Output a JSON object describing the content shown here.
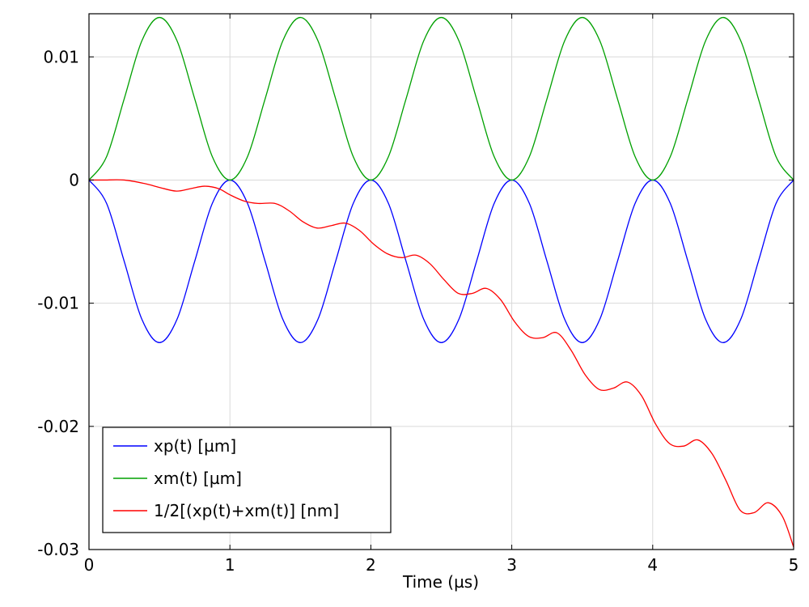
{
  "chart_data": {
    "type": "line",
    "xlabel": "Time (µs)",
    "ylabel": "",
    "xlim": [
      0,
      5
    ],
    "ylim": [
      -0.03,
      0.0135
    ],
    "grid": true,
    "legend_position": "bottom-left",
    "xticks": [
      {
        "value": 0,
        "label": "0"
      },
      {
        "value": 1,
        "label": "1"
      },
      {
        "value": 2,
        "label": "2"
      },
      {
        "value": 3,
        "label": "3"
      },
      {
        "value": 4,
        "label": "4"
      },
      {
        "value": 5,
        "label": "5"
      }
    ],
    "yticks": [
      {
        "value": 0.01,
        "label": "0.01"
      },
      {
        "value": 0,
        "label": "0"
      },
      {
        "value": -0.01,
        "label": "-0.01"
      },
      {
        "value": -0.02,
        "label": "-0.02"
      },
      {
        "value": -0.03,
        "label": "-0.03"
      }
    ],
    "series": [
      {
        "name": "xp(t) [µm]",
        "color": "#0000ff",
        "x": [
          0,
          0.125,
          0.25,
          0.375,
          0.5,
          0.625,
          0.75,
          0.875,
          1,
          1.125,
          1.25,
          1.375,
          1.5,
          1.625,
          1.75,
          1.875,
          2,
          2.125,
          2.25,
          2.375,
          2.5,
          2.625,
          2.75,
          2.875,
          3,
          3.125,
          3.25,
          3.375,
          3.5,
          3.625,
          3.75,
          3.875,
          4,
          4.125,
          4.25,
          4.375,
          4.5,
          4.625,
          4.75,
          4.875,
          5
        ],
        "y": [
          0,
          -0.0019,
          -0.0066,
          -0.0113,
          -0.0132,
          -0.0113,
          -0.0066,
          -0.0019,
          0,
          -0.0019,
          -0.0066,
          -0.0113,
          -0.0132,
          -0.0113,
          -0.0066,
          -0.0019,
          0,
          -0.0019,
          -0.0066,
          -0.0113,
          -0.0132,
          -0.0113,
          -0.0066,
          -0.0019,
          0,
          -0.0019,
          -0.0066,
          -0.0113,
          -0.0132,
          -0.0113,
          -0.0066,
          -0.0019,
          0,
          -0.0019,
          -0.0066,
          -0.0113,
          -0.0132,
          -0.0113,
          -0.0066,
          -0.0019,
          0
        ]
      },
      {
        "name": "xm(t) [µm]",
        "color": "#00a000",
        "x": [
          0,
          0.125,
          0.25,
          0.375,
          0.5,
          0.625,
          0.75,
          0.875,
          1,
          1.125,
          1.25,
          1.375,
          1.5,
          1.625,
          1.75,
          1.875,
          2,
          2.125,
          2.25,
          2.375,
          2.5,
          2.625,
          2.75,
          2.875,
          3,
          3.125,
          3.25,
          3.375,
          3.5,
          3.625,
          3.75,
          3.875,
          4,
          4.125,
          4.25,
          4.375,
          4.5,
          4.625,
          4.75,
          4.875,
          5
        ],
        "y": [
          0,
          0.0019,
          0.0066,
          0.0113,
          0.0132,
          0.0113,
          0.0066,
          0.0019,
          0,
          0.0019,
          0.0066,
          0.0113,
          0.0132,
          0.0113,
          0.0066,
          0.0019,
          0,
          0.0019,
          0.0066,
          0.0113,
          0.0132,
          0.0113,
          0.0066,
          0.0019,
          0,
          0.0019,
          0.0066,
          0.0113,
          0.0132,
          0.0113,
          0.0066,
          0.0019,
          0,
          0.0019,
          0.0066,
          0.0113,
          0.0132,
          0.0113,
          0.0066,
          0.0019,
          0
        ]
      },
      {
        "name": "1/2[(xp(t)+xm(t)] [nm]",
        "color": "#ff0000",
        "x": [
          0,
          0.1,
          0.25,
          0.4,
          0.5,
          0.62,
          0.72,
          0.82,
          0.92,
          1.0,
          1.1,
          1.2,
          1.32,
          1.42,
          1.52,
          1.62,
          1.72,
          1.82,
          1.92,
          2.02,
          2.12,
          2.22,
          2.32,
          2.42,
          2.52,
          2.62,
          2.72,
          2.82,
          2.92,
          3.02,
          3.12,
          3.22,
          3.32,
          3.42,
          3.52,
          3.62,
          3.72,
          3.82,
          3.92,
          4.02,
          4.12,
          4.22,
          4.32,
          4.42,
          4.52,
          4.62,
          4.72,
          4.82,
          4.92,
          5.0
        ],
        "y": [
          0,
          0,
          0,
          -0.0003,
          -0.0006,
          -0.0009,
          -0.0007,
          -0.0005,
          -0.0007,
          -0.0012,
          -0.0017,
          -0.0019,
          -0.0019,
          -0.0025,
          -0.0034,
          -0.0039,
          -0.0037,
          -0.0035,
          -0.0041,
          -0.0052,
          -0.006,
          -0.0063,
          -0.0061,
          -0.0068,
          -0.0081,
          -0.0092,
          -0.0092,
          -0.0088,
          -0.0097,
          -0.0115,
          -0.0127,
          -0.0128,
          -0.0124,
          -0.0138,
          -0.0158,
          -0.017,
          -0.0169,
          -0.0164,
          -0.0175,
          -0.0198,
          -0.0214,
          -0.0216,
          -0.0211,
          -0.0222,
          -0.0244,
          -0.0268,
          -0.027,
          -0.0262,
          -0.0273,
          -0.0298
        ]
      }
    ]
  }
}
